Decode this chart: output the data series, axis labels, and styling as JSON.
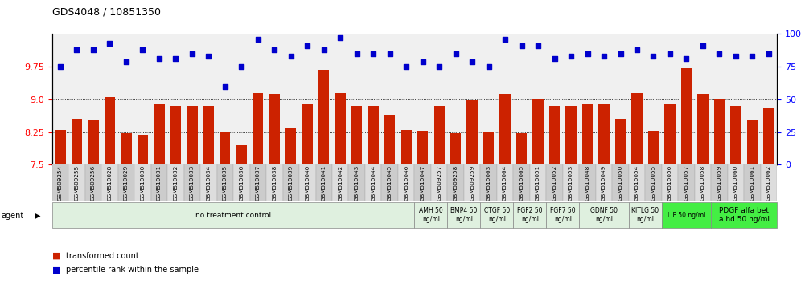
{
  "title": "GDS4048 / 10851350",
  "sample_ids": [
    "GSM509254",
    "GSM509255",
    "GSM509256",
    "GSM510028",
    "GSM510029",
    "GSM510030",
    "GSM510031",
    "GSM510032",
    "GSM510033",
    "GSM510034",
    "GSM510035",
    "GSM510036",
    "GSM510037",
    "GSM510038",
    "GSM510039",
    "GSM510040",
    "GSM510041",
    "GSM510042",
    "GSM510043",
    "GSM510044",
    "GSM510045",
    "GSM510046",
    "GSM510047",
    "GSM509257",
    "GSM509258",
    "GSM509259",
    "GSM510063",
    "GSM510064",
    "GSM510065",
    "GSM510051",
    "GSM510052",
    "GSM510053",
    "GSM510048",
    "GSM510049",
    "GSM510050",
    "GSM510054",
    "GSM510055",
    "GSM510056",
    "GSM510057",
    "GSM510058",
    "GSM510059",
    "GSM510060",
    "GSM510061",
    "GSM510062"
  ],
  "bar_values": [
    8.3,
    8.55,
    8.52,
    9.05,
    8.22,
    8.18,
    8.88,
    8.85,
    8.85,
    8.85,
    8.25,
    7.95,
    9.15,
    9.12,
    8.35,
    8.88,
    9.68,
    9.15,
    8.85,
    8.85,
    8.65,
    8.3,
    8.28,
    8.85,
    8.22,
    8.98,
    8.25,
    9.12,
    8.22,
    9.02,
    8.85,
    8.85,
    8.88,
    8.88,
    8.55,
    9.15,
    8.28,
    8.88,
    9.72,
    9.12,
    9.0,
    8.85,
    8.52,
    8.82
  ],
  "dot_values_pct": [
    75,
    88,
    88,
    93,
    79,
    88,
    81,
    81,
    85,
    83,
    60,
    75,
    96,
    88,
    83,
    91,
    88,
    97,
    85,
    85,
    85,
    75,
    79,
    75,
    85,
    79,
    75,
    96,
    91,
    91,
    81,
    83,
    85,
    83,
    85,
    88,
    83,
    85,
    81,
    91,
    85,
    83,
    83,
    85
  ],
  "ylim_left": [
    7.5,
    10.5
  ],
  "ylim_right": [
    0,
    100
  ],
  "yticks_left": [
    7.5,
    8.25,
    9.0,
    9.75
  ],
  "yticks_right": [
    0,
    25,
    50,
    75,
    100
  ],
  "bar_color": "#cc2200",
  "dot_color": "#0000cc",
  "plot_bg": "#f0f0f0",
  "groups": [
    {
      "label": "no treatment control",
      "start": 0,
      "end": 22,
      "color": "#dff0df",
      "bright": false
    },
    {
      "label": "AMH 50\nng/ml",
      "start": 22,
      "end": 24,
      "color": "#dff0df",
      "bright": false
    },
    {
      "label": "BMP4 50\nng/ml",
      "start": 24,
      "end": 26,
      "color": "#dff0df",
      "bright": false
    },
    {
      "label": "CTGF 50\nng/ml",
      "start": 26,
      "end": 28,
      "color": "#dff0df",
      "bright": false
    },
    {
      "label": "FGF2 50\nng/ml",
      "start": 28,
      "end": 30,
      "color": "#dff0df",
      "bright": false
    },
    {
      "label": "FGF7 50\nng/ml",
      "start": 30,
      "end": 32,
      "color": "#dff0df",
      "bright": false
    },
    {
      "label": "GDNF 50\nng/ml",
      "start": 32,
      "end": 35,
      "color": "#dff0df",
      "bright": false
    },
    {
      "label": "KITLG 50\nng/ml",
      "start": 35,
      "end": 37,
      "color": "#dff0df",
      "bright": false
    },
    {
      "label": "LIF 50 ng/ml",
      "start": 37,
      "end": 40,
      "color": "#44ee44",
      "bright": true
    },
    {
      "label": "PDGF alfa bet\na hd 50 ng/ml",
      "start": 40,
      "end": 44,
      "color": "#44ee44",
      "bright": true
    }
  ]
}
